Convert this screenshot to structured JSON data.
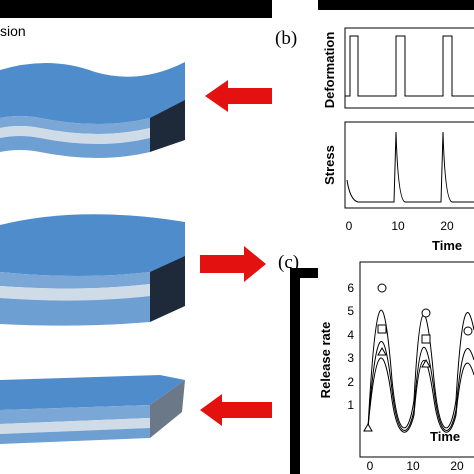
{
  "panel_a": {
    "label": "sion"
  },
  "panel_b": {
    "label": "(b)",
    "top_axis_label": "Deformation",
    "bottom_axis_label": "Stress",
    "x_ticks": [
      "0",
      "10",
      "20"
    ],
    "x_axis_label": "Time"
  },
  "panel_c": {
    "label": "(c)",
    "y_axis_label": "Release rate",
    "y_ticks": [
      "1",
      "2",
      "3",
      "4",
      "5",
      "6"
    ],
    "x_ticks": [
      "0",
      "10",
      "20"
    ],
    "x_axis_label": "Time"
  }
}
